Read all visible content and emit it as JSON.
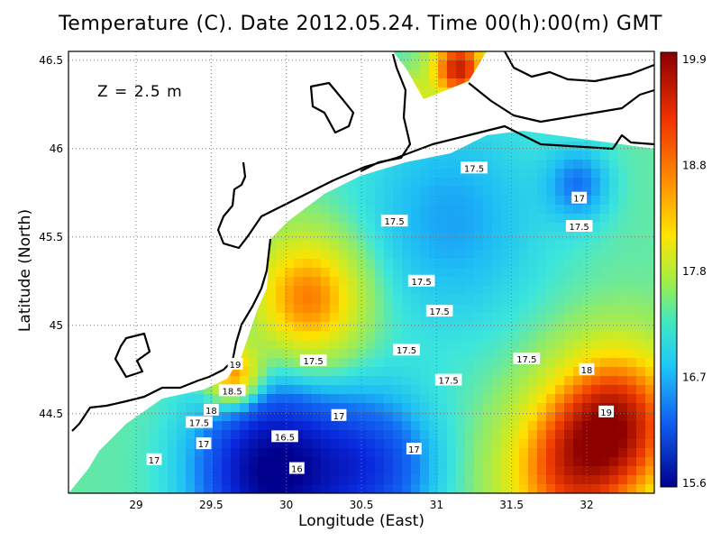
{
  "title": "Temperature (C). Date 2012.05.24. Time 00(h):00(m) GMT",
  "depth_label": "Z = 2.5 m",
  "xlabel": "Longitude (East)",
  "ylabel": "Latitude (North)",
  "colors": {
    "deep_blue": "#00008b",
    "blue": "#1e64ff",
    "cyan": "#2fd8f0",
    "green": "#8fe35a",
    "yellow": "#f5e400",
    "orange": "#ff8c00",
    "red": "#b00000",
    "land": "#ffffff",
    "coastline": "#000000"
  },
  "chart_data": {
    "type": "heatmap",
    "title": "Temperature (C). Date 2012.05.24. Time 00(h):00(m) GMT",
    "xlabel": "Longitude (East)",
    "ylabel": "Latitude (North)",
    "xlim": [
      28.55,
      32.45
    ],
    "ylim": [
      44.05,
      46.55
    ],
    "xticks": [
      "29",
      "29.5",
      "30",
      "30.5",
      "31",
      "31.5",
      "32"
    ],
    "yticks": [
      "44.5",
      "45",
      "45.5",
      "46",
      "46.5"
    ],
    "grid": true,
    "colorbar": {
      "min": 15.6,
      "max": 19.9,
      "tick_labels": [
        "19.9",
        "18.8",
        "17.8",
        "16.7",
        "15.6"
      ]
    },
    "contour_labels": [
      {
        "text": "17.5",
        "lon": 31.25,
        "lat": 45.89
      },
      {
        "text": "17",
        "lon": 31.95,
        "lat": 45.72
      },
      {
        "text": "17.5",
        "lon": 30.72,
        "lat": 45.59
      },
      {
        "text": "17.5",
        "lon": 31.95,
        "lat": 45.56
      },
      {
        "text": "17.5",
        "lon": 30.9,
        "lat": 45.25
      },
      {
        "text": "17.5",
        "lon": 31.02,
        "lat": 45.08
      },
      {
        "text": "17.5",
        "lon": 30.8,
        "lat": 44.86
      },
      {
        "text": "17.5",
        "lon": 30.18,
        "lat": 44.8
      },
      {
        "text": "17.5",
        "lon": 31.08,
        "lat": 44.69
      },
      {
        "text": "17.5",
        "lon": 31.6,
        "lat": 44.81
      },
      {
        "text": "18",
        "lon": 32.0,
        "lat": 44.75
      },
      {
        "text": "19",
        "lon": 29.66,
        "lat": 44.78
      },
      {
        "text": "18.5",
        "lon": 29.64,
        "lat": 44.63
      },
      {
        "text": "18",
        "lon": 29.5,
        "lat": 44.52
      },
      {
        "text": "17.5",
        "lon": 29.42,
        "lat": 44.45
      },
      {
        "text": "19",
        "lon": 32.13,
        "lat": 44.51
      },
      {
        "text": "17",
        "lon": 30.35,
        "lat": 44.49
      },
      {
        "text": "17",
        "lon": 29.45,
        "lat": 44.33
      },
      {
        "text": "16.5",
        "lon": 29.99,
        "lat": 44.37
      },
      {
        "text": "17",
        "lon": 30.85,
        "lat": 44.3
      },
      {
        "text": "17",
        "lon": 29.12,
        "lat": 44.24
      },
      {
        "text": "16",
        "lon": 30.07,
        "lat": 44.19
      }
    ],
    "hotspots": [
      {
        "lon": 31.15,
        "lat": 46.45,
        "value": 19.6,
        "sigma": 0.13
      },
      {
        "lon": 30.78,
        "lat": 46.25,
        "value": 18.9,
        "sigma": 0.1
      },
      {
        "lon": 30.15,
        "lat": 45.15,
        "value": 18.9,
        "sigma": 0.25
      },
      {
        "lon": 29.65,
        "lat": 44.72,
        "value": 19.0,
        "sigma": 0.12
      },
      {
        "lon": 32.2,
        "lat": 44.45,
        "value": 19.5,
        "sigma": 0.3
      },
      {
        "lon": 31.85,
        "lat": 44.15,
        "value": 18.8,
        "sigma": 0.3
      },
      {
        "lon": 29.9,
        "lat": 44.18,
        "value": 15.6,
        "sigma": 0.35
      },
      {
        "lon": 30.6,
        "lat": 44.2,
        "value": 16.4,
        "sigma": 0.3
      },
      {
        "lon": 31.1,
        "lat": 45.6,
        "value": 16.8,
        "sigma": 0.45
      },
      {
        "lon": 31.95,
        "lat": 45.8,
        "value": 16.7,
        "sigma": 0.15
      }
    ]
  }
}
